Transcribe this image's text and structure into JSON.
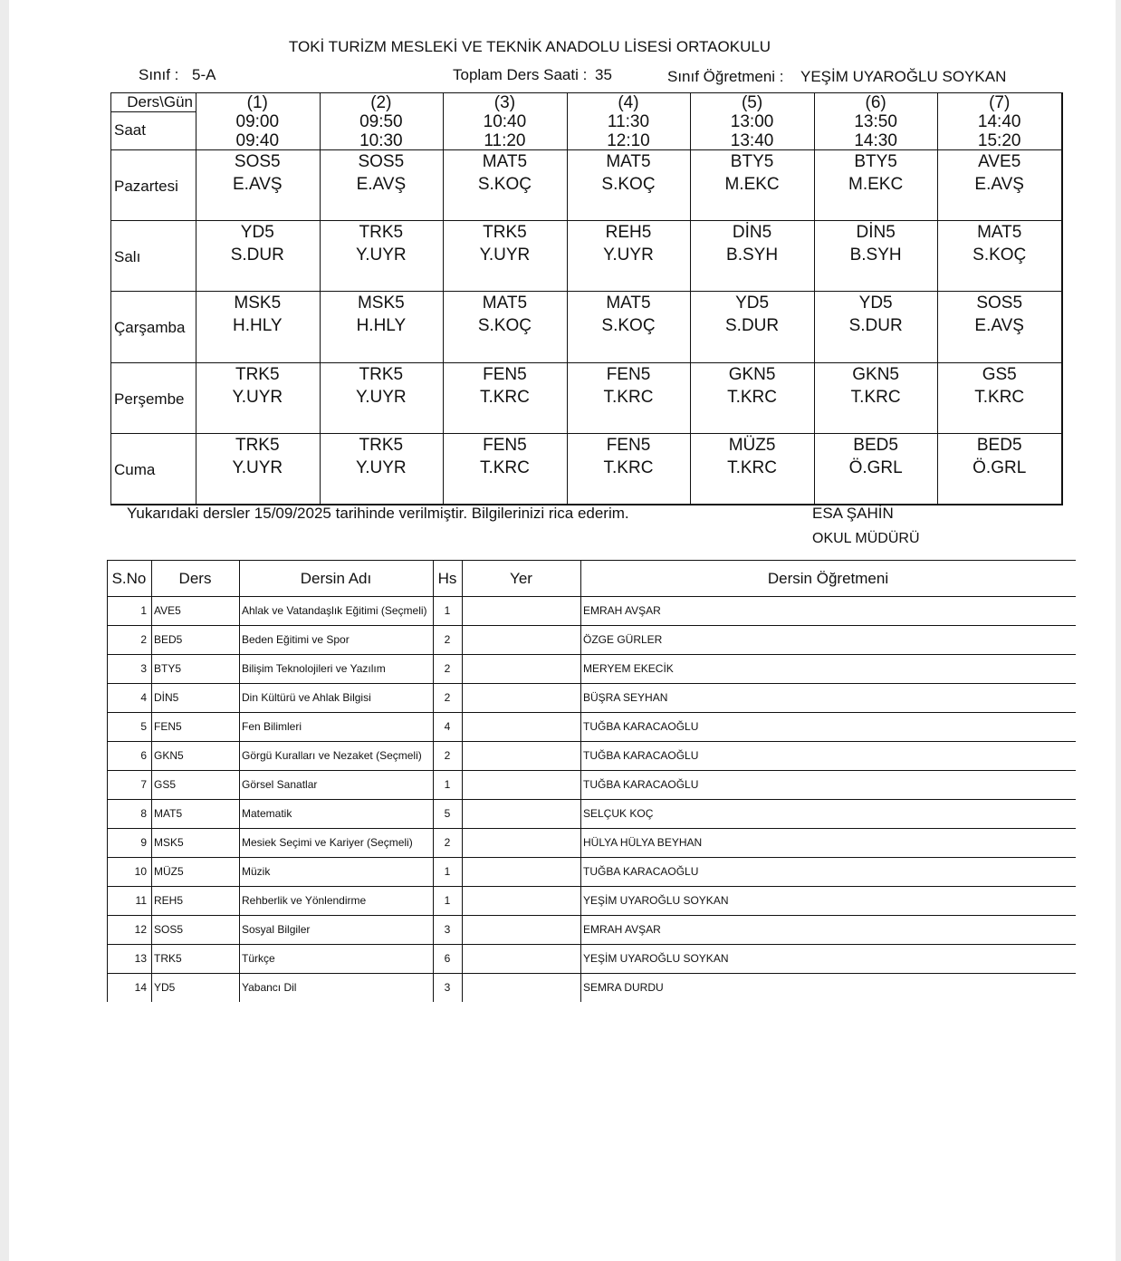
{
  "header": {
    "school": "TOKİ TURİZM MESLEKİ VE TEKNİK ANADOLU LİSESİ ORTAOKULU",
    "class_label": "Sınıf  :",
    "class": "5-A",
    "hours_label": "Toplam Ders Saati :",
    "hours": 35,
    "teacher_label": "Sınıf Öğretmeni  :",
    "teacher": "YEŞİM UYAROĞLU SOYKAN"
  },
  "schedule": {
    "corner": "Ders\\Gün",
    "time_label": "Saat",
    "periods": [
      {
        "number": "(1)",
        "start": "09:00",
        "end": "09:40"
      },
      {
        "number": "(2)",
        "start": "09:50",
        "end": "10:30"
      },
      {
        "number": "(3)",
        "start": "10:40",
        "end": "11:20"
      },
      {
        "number": "(4)",
        "start": "11:30",
        "end": "12:10"
      },
      {
        "number": "(5)",
        "start": "13:00",
        "end": "13:40"
      },
      {
        "number": "(6)",
        "start": "13:50",
        "end": "14:30"
      },
      {
        "number": "(7)",
        "start": "14:40",
        "end": "15:20"
      }
    ],
    "days": [
      {
        "name": "Pazartesi",
        "lessons": [
          [
            "SOS5",
            "E.AVŞ"
          ],
          [
            "SOS5",
            "E.AVŞ"
          ],
          [
            "MAT5",
            "S.KOÇ"
          ],
          [
            "MAT5",
            "S.KOÇ"
          ],
          [
            "BTY5",
            "M.EKC"
          ],
          [
            "BTY5",
            "M.EKC"
          ],
          [
            "AVE5",
            "E.AVŞ"
          ]
        ]
      },
      {
        "name": "Salı",
        "lessons": [
          [
            "YD5",
            "S.DUR"
          ],
          [
            "TRK5",
            "Y.UYR"
          ],
          [
            "TRK5",
            "Y.UYR"
          ],
          [
            "REH5",
            "Y.UYR"
          ],
          [
            "DİN5",
            "B.SYH"
          ],
          [
            "DİN5",
            "B.SYH"
          ],
          [
            "MAT5",
            "S.KOÇ"
          ]
        ]
      },
      {
        "name": "Çarşamba",
        "lessons": [
          [
            "MSK5",
            "H.HLY"
          ],
          [
            "MSK5",
            "H.HLY"
          ],
          [
            "MAT5",
            "S.KOÇ"
          ],
          [
            "MAT5",
            "S.KOÇ"
          ],
          [
            "YD5",
            "S.DUR"
          ],
          [
            "YD5",
            "S.DUR"
          ],
          [
            "SOS5",
            "E.AVŞ"
          ]
        ]
      },
      {
        "name": "Perşembe",
        "lessons": [
          [
            "TRK5",
            "Y.UYR"
          ],
          [
            "TRK5",
            "Y.UYR"
          ],
          [
            "FEN5",
            "T.KRC"
          ],
          [
            "FEN5",
            "T.KRC"
          ],
          [
            "GKN5",
            "T.KRC"
          ],
          [
            "GKN5",
            "T.KRC"
          ],
          [
            "GS5",
            "T.KRC"
          ]
        ]
      },
      {
        "name": "Cuma",
        "lessons": [
          [
            "TRK5",
            "Y.UYR"
          ],
          [
            "TRK5",
            "Y.UYR"
          ],
          [
            "FEN5",
            "T.KRC"
          ],
          [
            "FEN5",
            "T.KRC"
          ],
          [
            "MÜZ5",
            "T.KRC"
          ],
          [
            "BED5",
            "Ö.GRL"
          ],
          [
            "BED5",
            "Ö.GRL"
          ]
        ]
      }
    ]
  },
  "footer": {
    "note": "Yukarıdaki dersler 15/09/2025 tarihinde verilmiştir. Bilgilerinizi rica ederim.",
    "signer": "ESA ŞAHİN",
    "signer_title": "OKUL MÜDÜRÜ"
  },
  "course_list": {
    "headers": [
      "S.No",
      "Ders",
      "Dersin Adı",
      "Hs",
      "Yer",
      "Dersin Öğretmeni"
    ],
    "rows": [
      {
        "no": 1,
        "code": "AVE5",
        "name": "Ahlak ve Vatandaşlık Eğitimi (Seçmeli)",
        "hours": 1,
        "teacher": "EMRAH AVŞAR"
      },
      {
        "no": 2,
        "code": "BED5",
        "name": "Beden Eğitimi ve Spor",
        "hours": 2,
        "teacher": "ÖZGE GÜRLER"
      },
      {
        "no": 3,
        "code": "BTY5",
        "name": "Bilişim Teknolojileri ve Yazılım",
        "hours": 2,
        "teacher": "MERYEM EKECİK"
      },
      {
        "no": 4,
        "code": "DİN5",
        "name": "Din Kültürü ve Ahlak Bilgisi",
        "hours": 2,
        "teacher": "BÜŞRA SEYHAN"
      },
      {
        "no": 5,
        "code": "FEN5",
        "name": "Fen Bilimleri",
        "hours": 4,
        "teacher": "TUĞBA KARACAOĞLU"
      },
      {
        "no": 6,
        "code": "GKN5",
        "name": "Görgü Kuralları ve Nezaket (Seçmeli)",
        "hours": 2,
        "teacher": "TUĞBA KARACAOĞLU"
      },
      {
        "no": 7,
        "code": "GS5",
        "name": "Görsel Sanatlar",
        "hours": 1,
        "teacher": "TUĞBA KARACAOĞLU"
      },
      {
        "no": 8,
        "code": "MAT5",
        "name": "Matematik",
        "hours": 5,
        "teacher": "SELÇUK KOÇ"
      },
      {
        "no": 9,
        "code": "MSK5",
        "name": "Mesiek Seçimi ve Kariyer (Seçmeli)",
        "hours": 2,
        "teacher": "HÜLYA HÜLYA BEYHAN"
      },
      {
        "no": 10,
        "code": "MÜZ5",
        "name": "Müzik",
        "hours": 1,
        "teacher": "TUĞBA KARACAOĞLU"
      },
      {
        "no": 11,
        "code": "REH5",
        "name": "Rehberlik ve Yönlendirme",
        "hours": 1,
        "teacher": "YEŞİM UYAROĞLU SOYKAN"
      },
      {
        "no": 12,
        "code": "SOS5",
        "name": "Sosyal Bilgiler",
        "hours": 3,
        "teacher": "EMRAH AVŞAR"
      },
      {
        "no": 13,
        "code": "TRK5",
        "name": "Türkçe",
        "hours": 6,
        "teacher": "YEŞİM UYAROĞLU SOYKAN"
      },
      {
        "no": 14,
        "code": "YD5",
        "name": "Yabancı Dil",
        "hours": 3,
        "teacher": "SEMRA DURDU"
      }
    ]
  }
}
